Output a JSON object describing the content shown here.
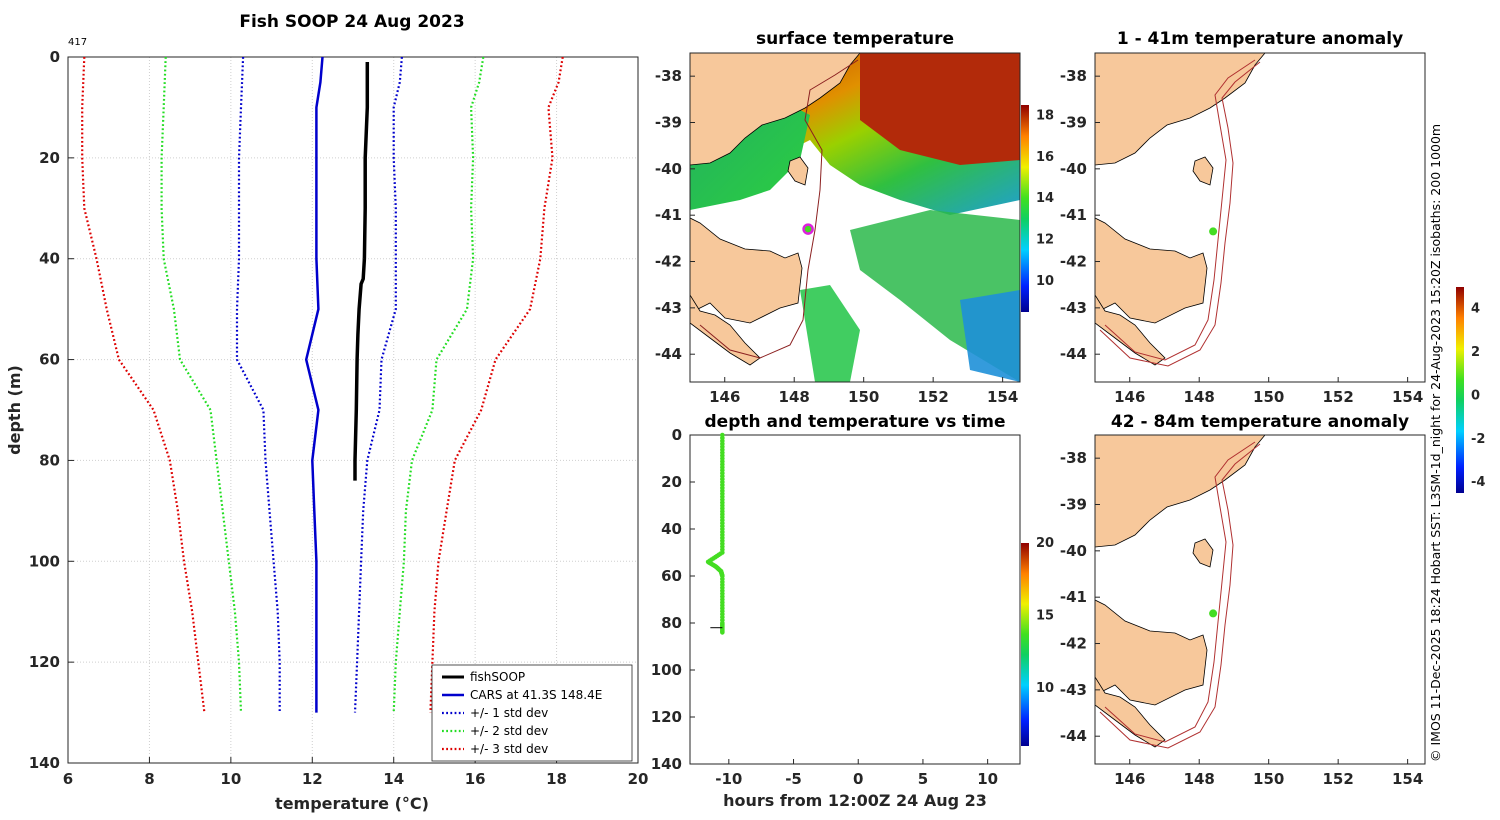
{
  "figure": {
    "footer": "© IMOS 11-Dec-2025 18:24 Hobart SST: L3SM-1d_night for 24-Aug-2023 15:20Z isobaths: 200  1000m"
  },
  "colors": {
    "fishSOOP": "#000000",
    "CARS": "#0000cc",
    "std1": "#0000cc",
    "std2": "#22dd22",
    "std3": "#dd0000",
    "land": "#f7c89b",
    "isobath": "#b03030",
    "track_dot": "#44dd22"
  },
  "chart_data": [
    {
      "type": "line",
      "id": "profile",
      "title": "Fish SOOP 24 Aug 2023",
      "corner_label": "417",
      "xlabel": "temperature (°C)",
      "ylabel": "depth (m)",
      "xlim": [
        6,
        20
      ],
      "ylim": [
        0,
        140
      ],
      "y_inverted": true,
      "xticks": [
        6,
        8,
        10,
        12,
        14,
        16,
        18,
        20
      ],
      "yticks": [
        0,
        20,
        40,
        60,
        80,
        100,
        120,
        140
      ],
      "grid": true,
      "legend_position": "bottom-right",
      "series": [
        {
          "name": "fishSOOP",
          "style": "solid-thick",
          "color_key": "fishSOOP",
          "points": [
            [
              13.35,
              1
            ],
            [
              13.35,
              10
            ],
            [
              13.3,
              20
            ],
            [
              13.3,
              30
            ],
            [
              13.28,
              40
            ],
            [
              13.25,
              44
            ],
            [
              13.2,
              45
            ],
            [
              13.15,
              50
            ],
            [
              13.12,
              55
            ],
            [
              13.1,
              60
            ],
            [
              13.08,
              70
            ],
            [
              13.05,
              80
            ],
            [
              13.05,
              84
            ]
          ]
        },
        {
          "name": "CARS at 41.3S 148.4E",
          "style": "solid",
          "color_key": "CARS",
          "points": [
            [
              12.25,
              0
            ],
            [
              12.2,
              5
            ],
            [
              12.1,
              10
            ],
            [
              12.1,
              20
            ],
            [
              12.1,
              30
            ],
            [
              12.1,
              40
            ],
            [
              12.15,
              50
            ],
            [
              11.85,
              60
            ],
            [
              12.15,
              70
            ],
            [
              12.0,
              80
            ],
            [
              12.05,
              90
            ],
            [
              12.1,
              100
            ],
            [
              12.1,
              110
            ],
            [
              12.1,
              120
            ],
            [
              12.1,
              130
            ]
          ]
        },
        {
          "name": "+/- 1 std dev",
          "style": "dotted",
          "color_key": "std1",
          "points": [
            [
              10.3,
              0
            ],
            [
              10.25,
              10
            ],
            [
              10.2,
              20
            ],
            [
              10.2,
              30
            ],
            [
              10.2,
              40
            ],
            [
              10.15,
              50
            ],
            [
              10.15,
              60
            ],
            [
              10.8,
              70
            ],
            [
              10.85,
              80
            ],
            [
              10.95,
              90
            ],
            [
              11.05,
              100
            ],
            [
              11.15,
              110
            ],
            [
              11.2,
              120
            ],
            [
              11.2,
              130
            ]
          ]
        },
        {
          "name": "+/- 1 std dev (upper)",
          "style": "dotted",
          "color_key": "std1",
          "points": [
            [
              14.2,
              0
            ],
            [
              14.15,
              5
            ],
            [
              14.0,
              10
            ],
            [
              14.0,
              20
            ],
            [
              14.05,
              30
            ],
            [
              14.05,
              40
            ],
            [
              14.05,
              50
            ],
            [
              13.7,
              60
            ],
            [
              13.65,
              70
            ],
            [
              13.35,
              80
            ],
            [
              13.25,
              90
            ],
            [
              13.2,
              100
            ],
            [
              13.15,
              110
            ],
            [
              13.1,
              120
            ],
            [
              13.05,
              130
            ]
          ]
        },
        {
          "name": "+/- 2 std dev",
          "style": "dotted",
          "color_key": "std2",
          "points": [
            [
              8.4,
              0
            ],
            [
              8.35,
              10
            ],
            [
              8.3,
              20
            ],
            [
              8.3,
              30
            ],
            [
              8.35,
              40
            ],
            [
              8.6,
              50
            ],
            [
              8.75,
              60
            ],
            [
              9.5,
              70
            ],
            [
              9.65,
              80
            ],
            [
              9.8,
              90
            ],
            [
              9.95,
              100
            ],
            [
              10.1,
              110
            ],
            [
              10.2,
              120
            ],
            [
              10.25,
              130
            ]
          ]
        },
        {
          "name": "+/- 2 std dev (upper)",
          "style": "dotted",
          "color_key": "std2",
          "points": [
            [
              16.2,
              0
            ],
            [
              16.1,
              5
            ],
            [
              15.9,
              10
            ],
            [
              15.95,
              20
            ],
            [
              15.9,
              30
            ],
            [
              15.95,
              40
            ],
            [
              15.8,
              50
            ],
            [
              15.05,
              60
            ],
            [
              14.95,
              70
            ],
            [
              14.45,
              80
            ],
            [
              14.3,
              90
            ],
            [
              14.25,
              100
            ],
            [
              14.15,
              110
            ],
            [
              14.05,
              120
            ],
            [
              14.0,
              130
            ]
          ]
        },
        {
          "name": "+/- 3 std dev",
          "style": "dotted",
          "color_key": "std3",
          "points": [
            [
              6.4,
              0
            ],
            [
              6.35,
              10
            ],
            [
              6.35,
              20
            ],
            [
              6.4,
              30
            ],
            [
              6.7,
              40
            ],
            [
              6.95,
              50
            ],
            [
              7.25,
              60
            ],
            [
              8.1,
              70
            ],
            [
              8.5,
              80
            ],
            [
              8.7,
              90
            ],
            [
              8.85,
              100
            ],
            [
              9.05,
              110
            ],
            [
              9.2,
              120
            ],
            [
              9.35,
              130
            ]
          ]
        },
        {
          "name": "+/- 3 std dev (upper)",
          "style": "dotted",
          "color_key": "std3",
          "points": [
            [
              18.15,
              0
            ],
            [
              18.05,
              5
            ],
            [
              17.8,
              10
            ],
            [
              17.9,
              20
            ],
            [
              17.7,
              30
            ],
            [
              17.6,
              40
            ],
            [
              17.35,
              50
            ],
            [
              16.5,
              60
            ],
            [
              16.15,
              70
            ],
            [
              15.5,
              80
            ],
            [
              15.3,
              90
            ],
            [
              15.1,
              100
            ],
            [
              15.0,
              110
            ],
            [
              14.95,
              120
            ],
            [
              14.9,
              130
            ]
          ]
        }
      ],
      "legend": [
        "fishSOOP",
        "CARS at 41.3S 148.4E",
        "+/- 1 std dev",
        "+/- 2 std dev",
        "+/- 3 std dev"
      ]
    },
    {
      "type": "heatmap",
      "id": "sst",
      "title": "surface temperature",
      "xticks": [
        146,
        148,
        150,
        152,
        154
      ],
      "yticks": [
        -38,
        -39,
        -40,
        -41,
        -42,
        -43,
        -44
      ],
      "xlim": [
        145,
        154.5
      ],
      "ylim": [
        -44.6,
        -37.5
      ],
      "colorbar_ticks": [
        10,
        12,
        14,
        16,
        18
      ],
      "colorbar_range": [
        8.5,
        18.5
      ],
      "marker": {
        "lon": 148.4,
        "lat": -41.3
      }
    },
    {
      "type": "scatter",
      "id": "depth_time",
      "title": "depth and temperature vs time",
      "xlabel": "hours from 12:00Z 24 Aug 23",
      "xlim": [
        -13,
        12.5
      ],
      "ylim": [
        0,
        140
      ],
      "y_inverted": true,
      "xticks": [
        -10,
        -5,
        0,
        5,
        10
      ],
      "yticks": [
        0,
        20,
        40,
        60,
        80,
        100,
        120,
        140
      ],
      "colorbar_ticks": [
        10,
        15,
        20
      ],
      "colorbar_range": [
        6,
        20
      ],
      "points": [
        [
          -10.5,
          0
        ],
        [
          -10.5,
          10
        ],
        [
          -10.5,
          20
        ],
        [
          -10.5,
          30
        ],
        [
          -10.5,
          40
        ],
        [
          -10.5,
          50
        ],
        [
          -11.6,
          54
        ],
        [
          -11.0,
          56
        ],
        [
          -10.6,
          58
        ],
        [
          -10.5,
          60
        ],
        [
          -10.5,
          70
        ],
        [
          -10.5,
          80
        ],
        [
          -10.5,
          84
        ]
      ]
    },
    {
      "type": "heatmap",
      "id": "anom_shallow",
      "title": "1 - 41m temperature anomaly",
      "xticks": [
        146,
        148,
        150,
        152,
        154
      ],
      "yticks": [
        -38,
        -39,
        -40,
        -41,
        -42,
        -43,
        -44
      ],
      "xlim": [
        145,
        154.5
      ],
      "ylim": [
        -44.6,
        -37.5
      ],
      "marker": {
        "lon": 148.4,
        "lat": -41.35
      }
    },
    {
      "type": "heatmap",
      "id": "anom_deep",
      "title": "42 - 84m temperature anomaly",
      "xticks": [
        146,
        148,
        150,
        152,
        154
      ],
      "yticks": [
        -38,
        -39,
        -40,
        -41,
        -42,
        -43,
        -44
      ],
      "xlim": [
        145,
        154.5
      ],
      "ylim": [
        -44.6,
        -37.5
      ],
      "marker": {
        "lon": 148.4,
        "lat": -41.35
      },
      "colorbar_ticks": [
        4,
        2,
        0,
        -2,
        -4
      ],
      "colorbar_range": [
        -4.5,
        5.0
      ]
    }
  ]
}
